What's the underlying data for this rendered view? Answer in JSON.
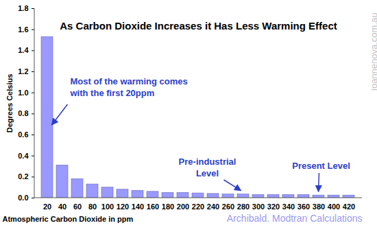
{
  "chart_data": {
    "type": "bar",
    "title": "As Carbon Dioxide Increases it Has Less Warming Effect",
    "x_label": "Atmospheric Carbon Dioxide in ppm",
    "y_label": "Degrees Celsius",
    "categories": [
      20,
      40,
      60,
      80,
      100,
      120,
      140,
      160,
      180,
      200,
      220,
      240,
      260,
      280,
      300,
      320,
      340,
      360,
      380,
      400,
      420
    ],
    "values": [
      1.53,
      0.31,
      0.18,
      0.13,
      0.1,
      0.08,
      0.07,
      0.06,
      0.05,
      0.05,
      0.045,
      0.04,
      0.035,
      0.035,
      0.03,
      0.03,
      0.03,
      0.03,
      0.025,
      0.025,
      0.025
    ],
    "color": "#9999ff",
    "ylim": [
      0,
      1.8
    ],
    "yticks": [
      {
        "value": 0,
        "label": "0.0"
      },
      0.2,
      0.4,
      0.6,
      0.8,
      {
        "value": 1,
        "label": "1.0"
      },
      1.2,
      1.4,
      1.6,
      1.8
    ],
    "grid": false,
    "annotations": [
      {
        "text": "Most of the warming comes\nwith the first 20ppm",
        "category": 20
      },
      {
        "text": "Pre-industrial\nLevel",
        "category": 280
      },
      {
        "text": "Present Level",
        "category": 380
      }
    ],
    "watermark": "joannenova.com.au",
    "source": "Archibald. Modtran Calculations"
  }
}
